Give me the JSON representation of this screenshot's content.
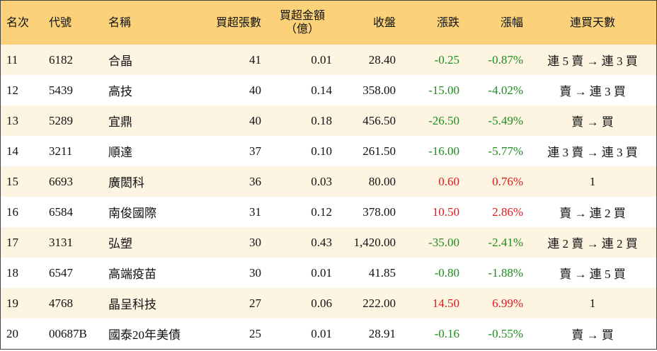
{
  "table": {
    "header": [
      "名次",
      "代號",
      "名稱",
      "買超張數",
      "買超金額\n（億）",
      "收盤",
      "漲跌",
      "漲幅",
      "連買天數"
    ],
    "rows": [
      [
        "11",
        "6182",
        "合晶",
        "41",
        "0.01",
        "28.40",
        "-0.25",
        "-0.87%",
        "連 5 賣 → 連 3 買"
      ],
      [
        "12",
        "5439",
        "高技",
        "40",
        "0.14",
        "358.00",
        "-15.00",
        "-4.02%",
        "賣 → 連 3 買"
      ],
      [
        "13",
        "5289",
        "宜鼎",
        "40",
        "0.18",
        "456.50",
        "-26.50",
        "-5.49%",
        "賣 → 買"
      ],
      [
        "14",
        "3211",
        "順達",
        "37",
        "0.10",
        "261.50",
        "-16.00",
        "-5.77%",
        "連 3 賣 → 連 3 買"
      ],
      [
        "15",
        "6693",
        "廣閎科",
        "36",
        "0.03",
        "80.00",
        "0.60",
        "0.76%",
        "1"
      ],
      [
        "16",
        "6584",
        "南俊國際",
        "31",
        "0.12",
        "378.00",
        "10.50",
        "2.86%",
        "賣 → 連 2 買"
      ],
      [
        "17",
        "3131",
        "弘塑",
        "30",
        "0.43",
        "1,420.00",
        "-35.00",
        "-2.41%",
        "連 2 賣 → 連 2 買"
      ],
      [
        "18",
        "6547",
        "高端疫苗",
        "30",
        "0.01",
        "41.85",
        "-0.80",
        "-1.88%",
        "賣 → 連 5 買"
      ],
      [
        "19",
        "4768",
        "晶呈科技",
        "27",
        "0.06",
        "222.00",
        "14.50",
        "6.99%",
        "1"
      ],
      [
        "20",
        "00687B",
        "國泰20年美債",
        "25",
        "0.01",
        "28.91",
        "-0.16",
        "-0.55%",
        "賣 → 買"
      ]
    ]
  }
}
